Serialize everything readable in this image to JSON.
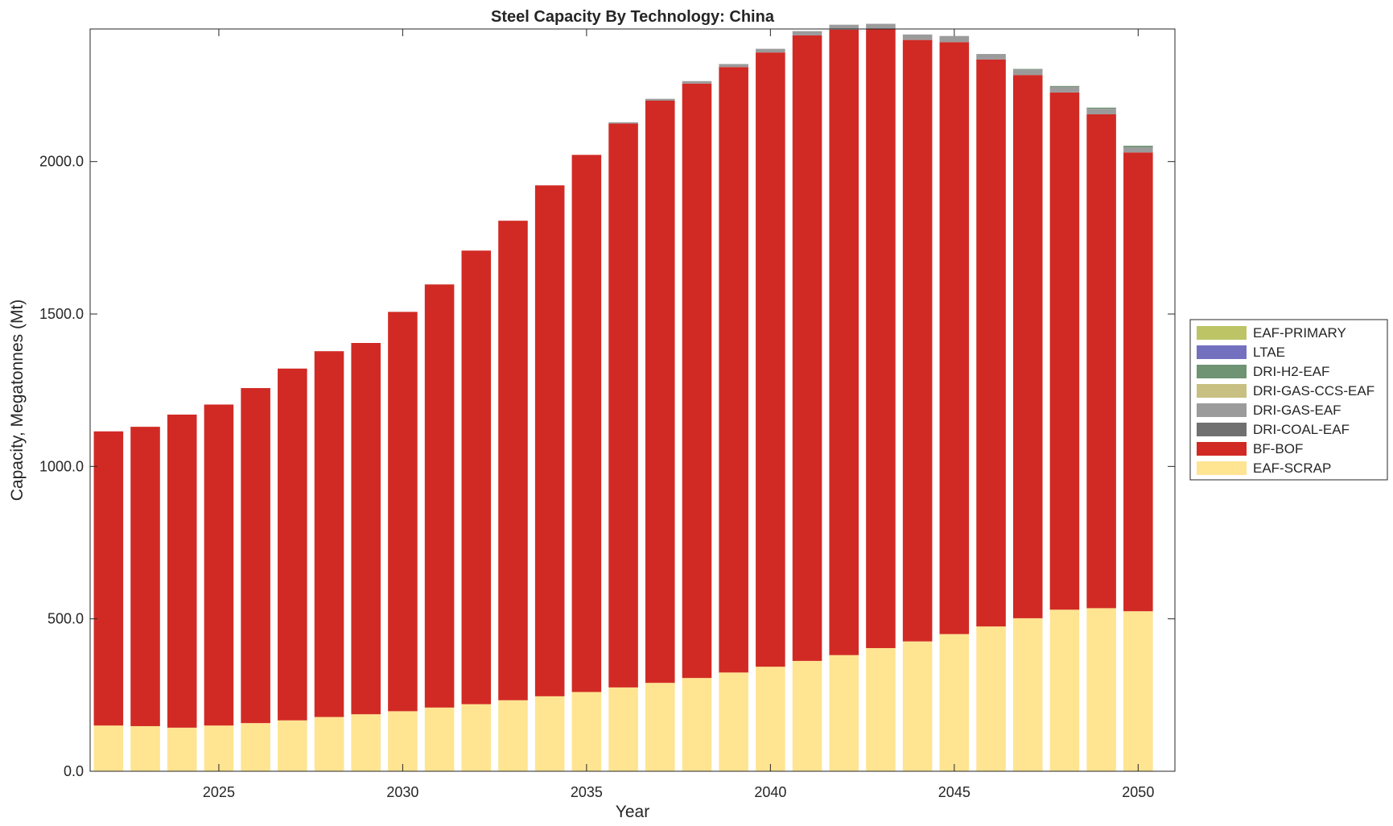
{
  "chart_data": {
    "type": "bar",
    "stacked": true,
    "title": "Steel Capacity By Technology: China",
    "xlabel": "Year",
    "ylabel": "Capacity, Megatonnes (Mt)",
    "xlim": [
      2021.5,
      2051.0
    ],
    "ylim": [
      0,
      2435
    ],
    "x_ticks": [
      2025,
      2030,
      2035,
      2040,
      2045,
      2050
    ],
    "x_tick_labels": [
      "2025",
      "2030",
      "2035",
      "2040",
      "2045",
      "2050"
    ],
    "y_ticks": [
      0,
      500,
      1000,
      1500,
      2000
    ],
    "y_tick_labels": [
      "0.0",
      "500.0",
      "1000.0",
      "1500.0",
      "2000.0"
    ],
    "grid": false,
    "legend_position": "right-outside",
    "x": [
      2022,
      2023,
      2024,
      2025,
      2026,
      2027,
      2028,
      2029,
      2030,
      2031,
      2032,
      2033,
      2034,
      2035,
      2036,
      2037,
      2038,
      2039,
      2040,
      2041,
      2042,
      2043,
      2044,
      2045,
      2046,
      2047,
      2048,
      2049,
      2050
    ],
    "series": [
      {
        "name": "EAF-SCRAP",
        "color": "#ffe491",
        "values": [
          150,
          148,
          143,
          150,
          158,
          167,
          178,
          187,
          197,
          209,
          220,
          233,
          246,
          260,
          275,
          290,
          306,
          324,
          343,
          362,
          381,
          404,
          426,
          450,
          475,
          502,
          530,
          535,
          525
        ]
      },
      {
        "name": "BF-BOF",
        "color": "#d12a24",
        "values": [
          965,
          982,
          1027,
          1053,
          1099,
          1154,
          1200,
          1218,
          1310,
          1388,
          1488,
          1573,
          1676,
          1762,
          1850,
          1910,
          1950,
          1986,
          2015,
          2052,
          2052,
          2030,
          1973,
          1942,
          1860,
          1782,
          1697,
          1620,
          1505
        ]
      },
      {
        "name": "DRI-COAL-EAF",
        "color": "#707070",
        "values": [
          0,
          0,
          0,
          0,
          0,
          0,
          0,
          0,
          0,
          0,
          0,
          0,
          0,
          0,
          0,
          0,
          0,
          0,
          0,
          0,
          0,
          0,
          0,
          0,
          0,
          0,
          0,
          0,
          0
        ]
      },
      {
        "name": "DRI-GAS-EAF",
        "color": "#9b9b9b",
        "values": [
          0,
          0,
          0,
          0,
          0,
          0,
          0,
          0,
          0,
          0,
          0,
          0,
          0,
          0,
          4,
          6,
          8,
          10,
          12,
          14,
          16,
          18,
          18,
          20,
          18,
          18,
          18,
          18,
          17
        ]
      },
      {
        "name": "DRI-GAS-CCS-EAF",
        "color": "#c8bf82",
        "values": [
          0,
          0,
          0,
          0,
          0,
          0,
          0,
          0,
          0,
          0,
          0,
          0,
          0,
          0,
          0,
          0,
          0,
          0,
          0,
          0,
          0,
          0,
          0,
          0,
          0,
          0,
          0,
          0,
          0
        ]
      },
      {
        "name": "DRI-H2-EAF",
        "color": "#6f9474",
        "values": [
          0,
          0,
          0,
          0,
          0,
          0,
          0,
          0,
          0,
          0,
          0,
          0,
          0,
          0,
          0,
          0,
          0,
          0,
          0,
          0,
          0,
          0,
          0,
          0,
          0,
          2,
          3,
          4,
          5
        ]
      },
      {
        "name": "LTAE",
        "color": "#7470c0",
        "values": [
          0,
          0,
          0,
          0,
          0,
          0,
          0,
          0,
          0,
          0,
          0,
          0,
          0,
          0,
          0,
          0,
          0,
          0,
          0,
          0,
          0,
          0,
          0,
          0,
          0,
          0,
          0,
          0,
          0
        ]
      },
      {
        "name": "EAF-PRIMARY",
        "color": "#bcc466",
        "values": [
          0,
          0,
          0,
          0,
          0,
          0,
          0,
          0,
          0,
          0,
          0,
          0,
          0,
          0,
          0,
          0,
          0,
          0,
          0,
          0,
          0,
          0,
          0,
          0,
          0,
          0,
          0,
          0,
          0
        ]
      }
    ],
    "legend_order": [
      "EAF-PRIMARY",
      "LTAE",
      "DRI-H2-EAF",
      "DRI-GAS-CCS-EAF",
      "DRI-GAS-EAF",
      "DRI-COAL-EAF",
      "BF-BOF",
      "EAF-SCRAP"
    ]
  }
}
